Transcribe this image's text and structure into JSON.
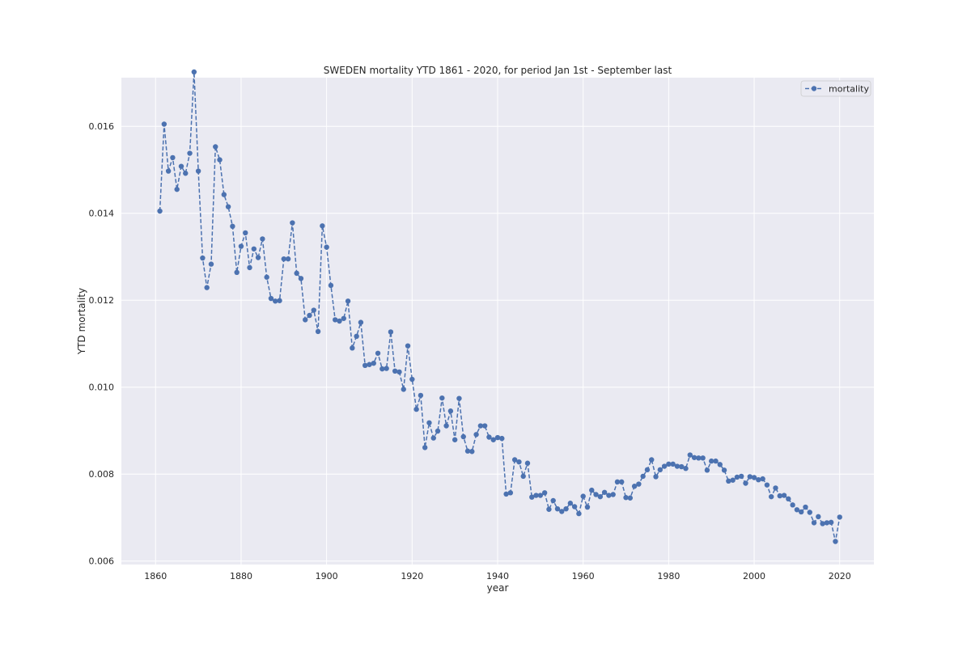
{
  "chart_data": {
    "type": "line",
    "title": "SWEDEN mortality YTD 1861 - 2020, for period Jan 1st - September last",
    "xlabel": "year",
    "ylabel": "YTD mortality",
    "xlim": [
      1852,
      2028
    ],
    "ylim": [
      0.00592,
      0.01712
    ],
    "xticks": [
      1860,
      1880,
      1900,
      1920,
      1940,
      1960,
      1980,
      2000,
      2020
    ],
    "xtick_labels": [
      "1860",
      "1880",
      "1900",
      "1920",
      "1940",
      "1960",
      "1980",
      "2000",
      "2020"
    ],
    "yticks": [
      0.006,
      0.008,
      0.01,
      0.012,
      0.014,
      0.016
    ],
    "ytick_labels": [
      "0.006",
      "0.008",
      "0.010",
      "0.012",
      "0.014",
      "0.016"
    ],
    "grid": true,
    "legend_position": "top-right",
    "line_style": "dashed",
    "marker": "circle",
    "colors": {
      "series": "#4c72b0",
      "plot_bg": "#eaeaf2",
      "grid": "#ffffff"
    },
    "series": [
      {
        "name": "mortality",
        "x": [
          1861,
          1862,
          1863,
          1864,
          1865,
          1866,
          1867,
          1868,
          1869,
          1870,
          1871,
          1872,
          1873,
          1874,
          1875,
          1876,
          1877,
          1878,
          1879,
          1880,
          1881,
          1882,
          1883,
          1884,
          1885,
          1886,
          1887,
          1888,
          1889,
          1890,
          1891,
          1892,
          1893,
          1894,
          1895,
          1896,
          1897,
          1898,
          1899,
          1900,
          1901,
          1902,
          1903,
          1904,
          1905,
          1906,
          1907,
          1908,
          1909,
          1910,
          1911,
          1912,
          1913,
          1914,
          1915,
          1916,
          1917,
          1918,
          1919,
          1920,
          1921,
          1922,
          1923,
          1924,
          1925,
          1926,
          1927,
          1928,
          1929,
          1930,
          1931,
          1932,
          1933,
          1934,
          1935,
          1936,
          1937,
          1938,
          1939,
          1940,
          1941,
          1942,
          1943,
          1944,
          1945,
          1946,
          1947,
          1948,
          1949,
          1950,
          1951,
          1952,
          1953,
          1954,
          1955,
          1956,
          1957,
          1958,
          1959,
          1960,
          1961,
          1962,
          1963,
          1964,
          1965,
          1966,
          1967,
          1968,
          1969,
          1970,
          1971,
          1972,
          1973,
          1974,
          1975,
          1976,
          1977,
          1978,
          1979,
          1980,
          1981,
          1982,
          1983,
          1984,
          1985,
          1986,
          1987,
          1988,
          1989,
          1990,
          1991,
          1992,
          1993,
          1994,
          1995,
          1996,
          1997,
          1998,
          1999,
          2000,
          2001,
          2002,
          2003,
          2004,
          2005,
          2006,
          2007,
          2008,
          2009,
          2010,
          2011,
          2012,
          2013,
          2014,
          2015,
          2016,
          2017,
          2018,
          2019,
          2020
        ],
        "y": [
          0.01405,
          0.01605,
          0.01497,
          0.01528,
          0.01455,
          0.01508,
          0.01492,
          0.01538,
          0.01725,
          0.01497,
          0.01297,
          0.01229,
          0.01283,
          0.01553,
          0.01523,
          0.01443,
          0.01415,
          0.0137,
          0.01264,
          0.01324,
          0.01355,
          0.01275,
          0.01318,
          0.01298,
          0.01341,
          0.01253,
          0.01204,
          0.01198,
          0.01199,
          0.01295,
          0.01295,
          0.01378,
          0.01262,
          0.0125,
          0.01155,
          0.01165,
          0.01177,
          0.01128,
          0.01371,
          0.01322,
          0.01234,
          0.01155,
          0.01152,
          0.01158,
          0.01198,
          0.0109,
          0.01117,
          0.01149,
          0.0105,
          0.01052,
          0.01055,
          0.01078,
          0.01042,
          0.01043,
          0.01127,
          0.01037,
          0.01035,
          0.00995,
          0.01095,
          0.01018,
          0.00949,
          0.00981,
          0.00861,
          0.00918,
          0.00883,
          0.00899,
          0.00975,
          0.00911,
          0.00945,
          0.00879,
          0.00974,
          0.00886,
          0.00853,
          0.00852,
          0.00891,
          0.00911,
          0.00911,
          0.00885,
          0.00879,
          0.00884,
          0.00882,
          0.00754,
          0.00757,
          0.00833,
          0.00828,
          0.00795,
          0.00825,
          0.00747,
          0.00751,
          0.00751,
          0.00757,
          0.00719,
          0.00739,
          0.0072,
          0.00714,
          0.0072,
          0.00733,
          0.00725,
          0.00709,
          0.00749,
          0.00724,
          0.00763,
          0.00753,
          0.00748,
          0.00758,
          0.00751,
          0.00753,
          0.00782,
          0.00782,
          0.00746,
          0.00745,
          0.00772,
          0.00777,
          0.00795,
          0.0081,
          0.00833,
          0.00794,
          0.0081,
          0.00818,
          0.00823,
          0.00823,
          0.00818,
          0.00817,
          0.00813,
          0.00844,
          0.00838,
          0.00837,
          0.00837,
          0.00809,
          0.0083,
          0.0083,
          0.00822,
          0.00809,
          0.00784,
          0.00786,
          0.00793,
          0.00795,
          0.00779,
          0.00794,
          0.00792,
          0.00787,
          0.00789,
          0.00775,
          0.00748,
          0.00768,
          0.0075,
          0.00751,
          0.00743,
          0.00729,
          0.00718,
          0.00713,
          0.00724,
          0.00712,
          0.00688,
          0.00702,
          0.00686,
          0.00688,
          0.00689,
          0.00645,
          0.00701
        ]
      }
    ]
  }
}
